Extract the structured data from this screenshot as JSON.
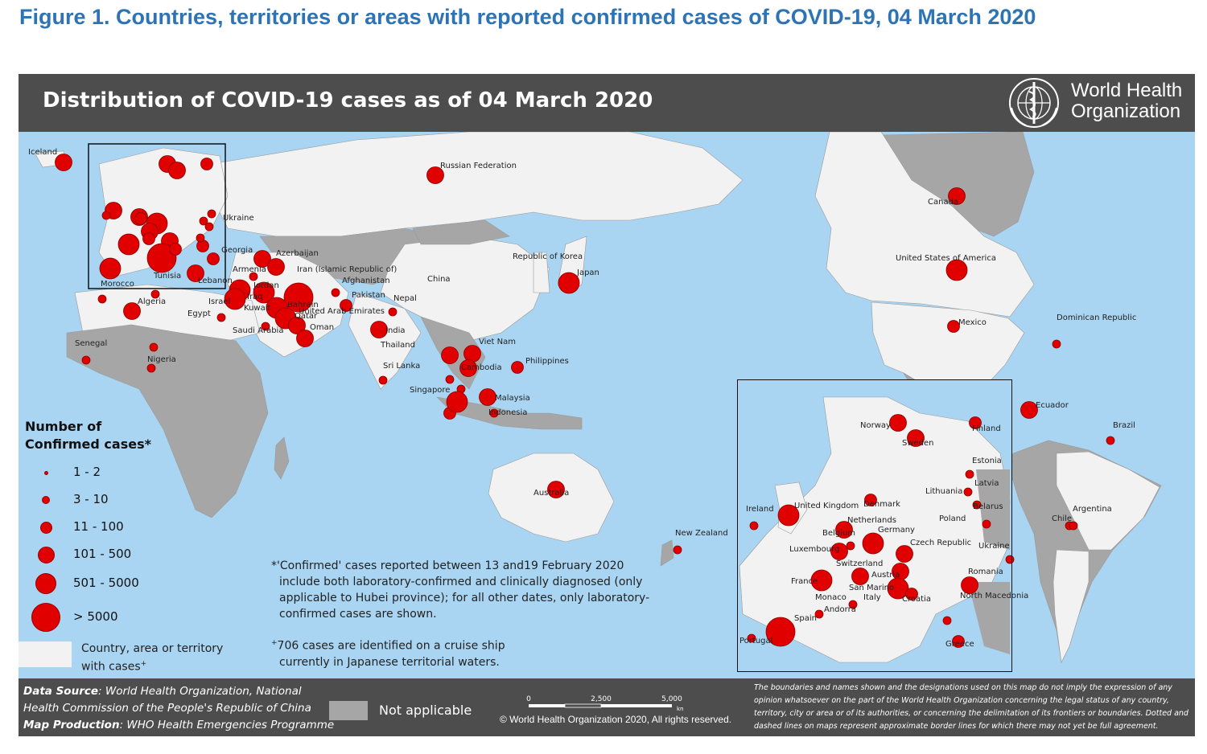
{
  "figure_title": "Figure 1. Countries, territories or areas with reported confirmed cases of COVID-19, 04 March 2020",
  "map_title": "Distribution of COVID-19 cases as of 04 March 2020",
  "organization": {
    "line1": "World Health",
    "line2": "Organization",
    "logo_icon": "who-emblem-icon"
  },
  "colors": {
    "title_blue": "#2e74b5",
    "ocean": "#a9d5f2",
    "land_cases": "#f2f2f2",
    "land_no_cases": "#a6a6a6",
    "not_applicable": "#a6a6a6",
    "bubble": "#e00000",
    "band": "#4d4d4d"
  },
  "legend": {
    "title_line1": "Number of",
    "title_line2": "Confirmed cases*",
    "classes": [
      {
        "label": "1 - 2"
      },
      {
        "label": "3 - 10"
      },
      {
        "label": "11 - 100"
      },
      {
        "label": "101 - 500"
      },
      {
        "label": "501 - 5000"
      },
      {
        "label": "> 5000"
      }
    ],
    "country_with_cases_line1": "Country, area or territory",
    "country_with_cases_line2": "with cases",
    "country_with_cases_sup": "+",
    "not_applicable": "Not applicable"
  },
  "footnotes": {
    "confirmed_1": "*'Confirmed' cases reported between 13 and19 February 2020",
    "confirmed_2": "include both laboratory-confirmed and clinically diagnosed (only",
    "confirmed_3": "applicable to Hubei province); for all other dates, only laboratory-",
    "confirmed_4": "confirmed cases are shown.",
    "cruise_sup": "+",
    "cruise_1": "706 cases are identified on a cruise ship",
    "cruise_2": "currently in Japanese territorial waters."
  },
  "footer": {
    "source_label": "Data Source",
    "source_1": ": World Health Organization, National",
    "source_2": "Health Commission of the People's Republic of China",
    "production_label": "Map Production",
    "production": ": WHO Health Emergencies Programme",
    "scale_0": "0",
    "scale_1": "2,500",
    "scale_2": "5,000",
    "scale_unit": "km",
    "copyright": "© World Health Organization 2020, All rights reserved.",
    "disclaimer": "The boundaries and names shown and the designations used on this map do not imply the expression of any opinion whatsoever on the part of the World Health Organization concerning the legal status of any country, territory, city or area or of its authorities, or concerning the delimitation of its frontiers or boundaries. Dotted and dashed lines on maps represent approximate border lines for which there may not yet be full agreement."
  },
  "world_labels": [
    "Iceland",
    "Russian Federation",
    "Ukraine",
    "Georgia",
    "Azerbaijan",
    "Armenia",
    "Iran (Islamic Republic of)",
    "Afghanistan",
    "China",
    "Republic of Korea",
    "Japan",
    "Lebanon",
    "Jordan",
    "Iraq",
    "Kuwait",
    "Bahrain",
    "Qatar",
    "United Arab Emirates",
    "Oman",
    "Saudi Arabia",
    "Pakistan",
    "Nepal",
    "India",
    "Israel",
    "Egypt",
    "Morocco",
    "Tunisia",
    "Algeria",
    "Senegal",
    "Nigeria",
    "Sri Lanka",
    "Thailand",
    "Viet Nam",
    "Cambodia",
    "Philippines",
    "Singapore",
    "Malaysia",
    "Indonesia",
    "Australia",
    "New Zealand",
    "Canada",
    "United States of America",
    "Mexico",
    "Dominican Republic",
    "Ecuador",
    "Brazil",
    "Chile",
    "Argentina"
  ],
  "europe_inset_labels": [
    "Norway",
    "Sweden",
    "Finland",
    "Estonia",
    "Latvia",
    "Lithuania",
    "Belarus",
    "Denmark",
    "Ireland",
    "United Kingdom",
    "Netherlands",
    "Poland",
    "Belgium",
    "Germany",
    "Luxembourg",
    "Czech Republic",
    "Ukraine",
    "Switzerland",
    "Austria",
    "France",
    "Romania",
    "San Marino",
    "Monaco",
    "Italy",
    "Croatia",
    "North Macedonia",
    "Andorra",
    "Spain",
    "Portugal",
    "Greece"
  ]
}
